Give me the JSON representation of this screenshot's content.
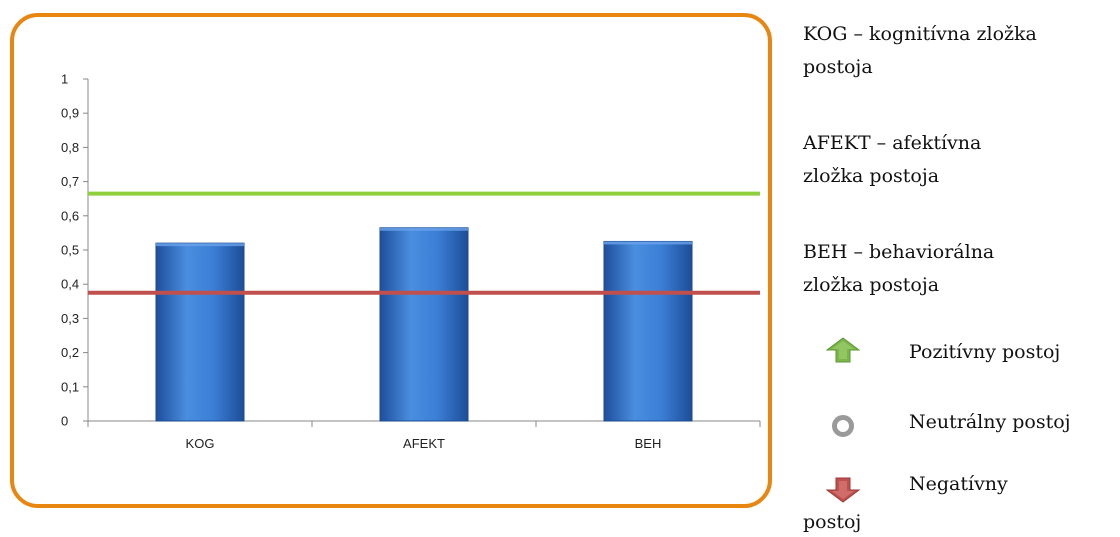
{
  "chart_data": {
    "type": "bar",
    "categories": [
      "KOG",
      "AFEKT",
      "BEH"
    ],
    "values": [
      0.52,
      0.565,
      0.525
    ],
    "ylim": [
      0,
      1
    ],
    "yticks": [
      "0",
      "0,1",
      "0,2",
      "0,3",
      "0,4",
      "0,5",
      "0,6",
      "0,7",
      "0,8",
      "0,9",
      "1"
    ],
    "reference_lines": [
      {
        "value": 0.665,
        "color": "#8fcf3c"
      },
      {
        "value": 0.375,
        "color": "#c0504d"
      }
    ],
    "bar_color": "#3a7bd5",
    "grid": false
  },
  "legend": {
    "kog_line1": "KOG – kognitívna zložka",
    "kog_line2": "postoja",
    "afekt_line1": "AFEKT – afektívna",
    "afekt_line2": "zložka postoja",
    "beh_line1": "BEH – behaviorálna",
    "beh_line2": "zložka postoja",
    "positive": "Pozitívny postoj",
    "neutral": "Neutrálny postoj",
    "negative": "Negatívny",
    "negative_cont": "postoj"
  },
  "colors": {
    "frame": "#e8860f",
    "positive_icon": "#7ab648",
    "neutral_icon": "#9a9a9a",
    "negative_icon": "#c0504d"
  }
}
